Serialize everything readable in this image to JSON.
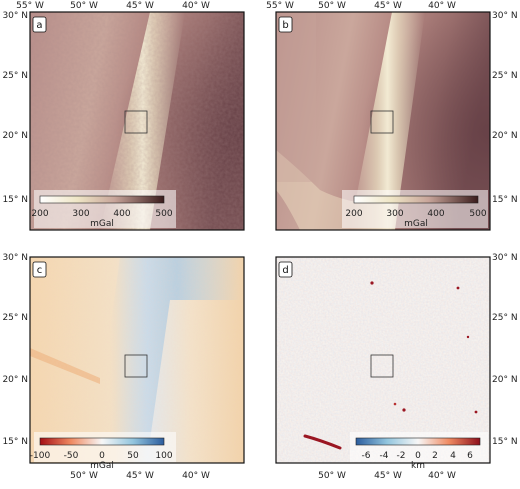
{
  "panels": [
    {
      "id": "a",
      "letter": "a",
      "colormap": "pink",
      "colorbar": {
        "ticks": [
          "200",
          "300",
          "400",
          "500"
        ],
        "unit": "mGal",
        "range": [
          200,
          500
        ]
      },
      "lat_ticks_left": true,
      "lat_ticks_right": false,
      "lon_ticks_top": true,
      "lon_ticks_bottom": false
    },
    {
      "id": "b",
      "letter": "b",
      "colormap": "pink",
      "colorbar": {
        "ticks": [
          "200",
          "300",
          "400",
          "500"
        ],
        "unit": "mGal",
        "range": [
          200,
          500
        ]
      },
      "lat_ticks_left": false,
      "lat_ticks_right": true,
      "lon_ticks_top": true,
      "lon_ticks_bottom": false
    },
    {
      "id": "c",
      "letter": "c",
      "colormap": "red-blue",
      "colorbar": {
        "ticks": [
          "-100",
          "-50",
          "0",
          "50",
          "100"
        ],
        "unit": "mGal",
        "range": [
          -100,
          100
        ]
      },
      "lat_ticks_left": true,
      "lat_ticks_right": false,
      "lon_ticks_top": false,
      "lon_ticks_bottom": true
    },
    {
      "id": "d",
      "letter": "d",
      "colormap": "blue-red",
      "colorbar": {
        "ticks": [
          "-6",
          "-4",
          "-2",
          "0",
          "2",
          "4",
          "6"
        ],
        "unit": "km",
        "range": [
          -6,
          6
        ]
      },
      "lat_ticks_left": false,
      "lat_ticks_right": true,
      "lon_ticks_top": false,
      "lon_ticks_bottom": true
    }
  ],
  "lon_labels": [
    "55° W",
    "50° W",
    "45° W",
    "40° W"
  ],
  "lat_labels": [
    "30° N",
    "25° N",
    "20° N",
    "15° N"
  ],
  "colors": {
    "pink_dark": "#6b3e43",
    "pink_mid": "#b78b85",
    "pink_light": "#f1ecd6",
    "red_dark": "#b01920",
    "blue_dark": "#2c5d9e",
    "neutral": "#f6f2ee",
    "frame": "#111111"
  }
}
